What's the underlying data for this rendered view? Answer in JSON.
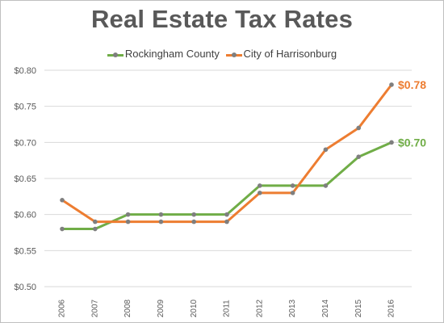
{
  "chart_data": {
    "type": "line",
    "title": "Real Estate Tax Rates",
    "xlabel": "",
    "ylabel": "",
    "categories": [
      "2006",
      "2007",
      "2008",
      "2009",
      "2010",
      "2011",
      "2012",
      "2013",
      "2014",
      "2015",
      "2016"
    ],
    "ylim": [
      0.5,
      0.8
    ],
    "yticks": [
      0.5,
      0.55,
      0.6,
      0.65,
      0.7,
      0.75,
      0.8
    ],
    "ytick_labels": [
      "$0.50",
      "$0.55",
      "$0.60",
      "$0.65",
      "$0.70",
      "$0.75",
      "$0.80"
    ],
    "grid": true,
    "legend_position": "top",
    "marker_color": "#7f7f7f",
    "series": [
      {
        "name": "Rockingham County",
        "color": "#70ad47",
        "values": [
          0.58,
          0.58,
          0.6,
          0.6,
          0.6,
          0.6,
          0.64,
          0.64,
          0.64,
          0.68,
          0.7
        ],
        "end_label": "$0.70"
      },
      {
        "name": "City of Harrisonburg",
        "color": "#ed7d31",
        "values": [
          0.62,
          0.59,
          0.59,
          0.59,
          0.59,
          0.59,
          0.63,
          0.63,
          0.69,
          0.72,
          0.78
        ],
        "end_label": "$0.78"
      }
    ]
  }
}
